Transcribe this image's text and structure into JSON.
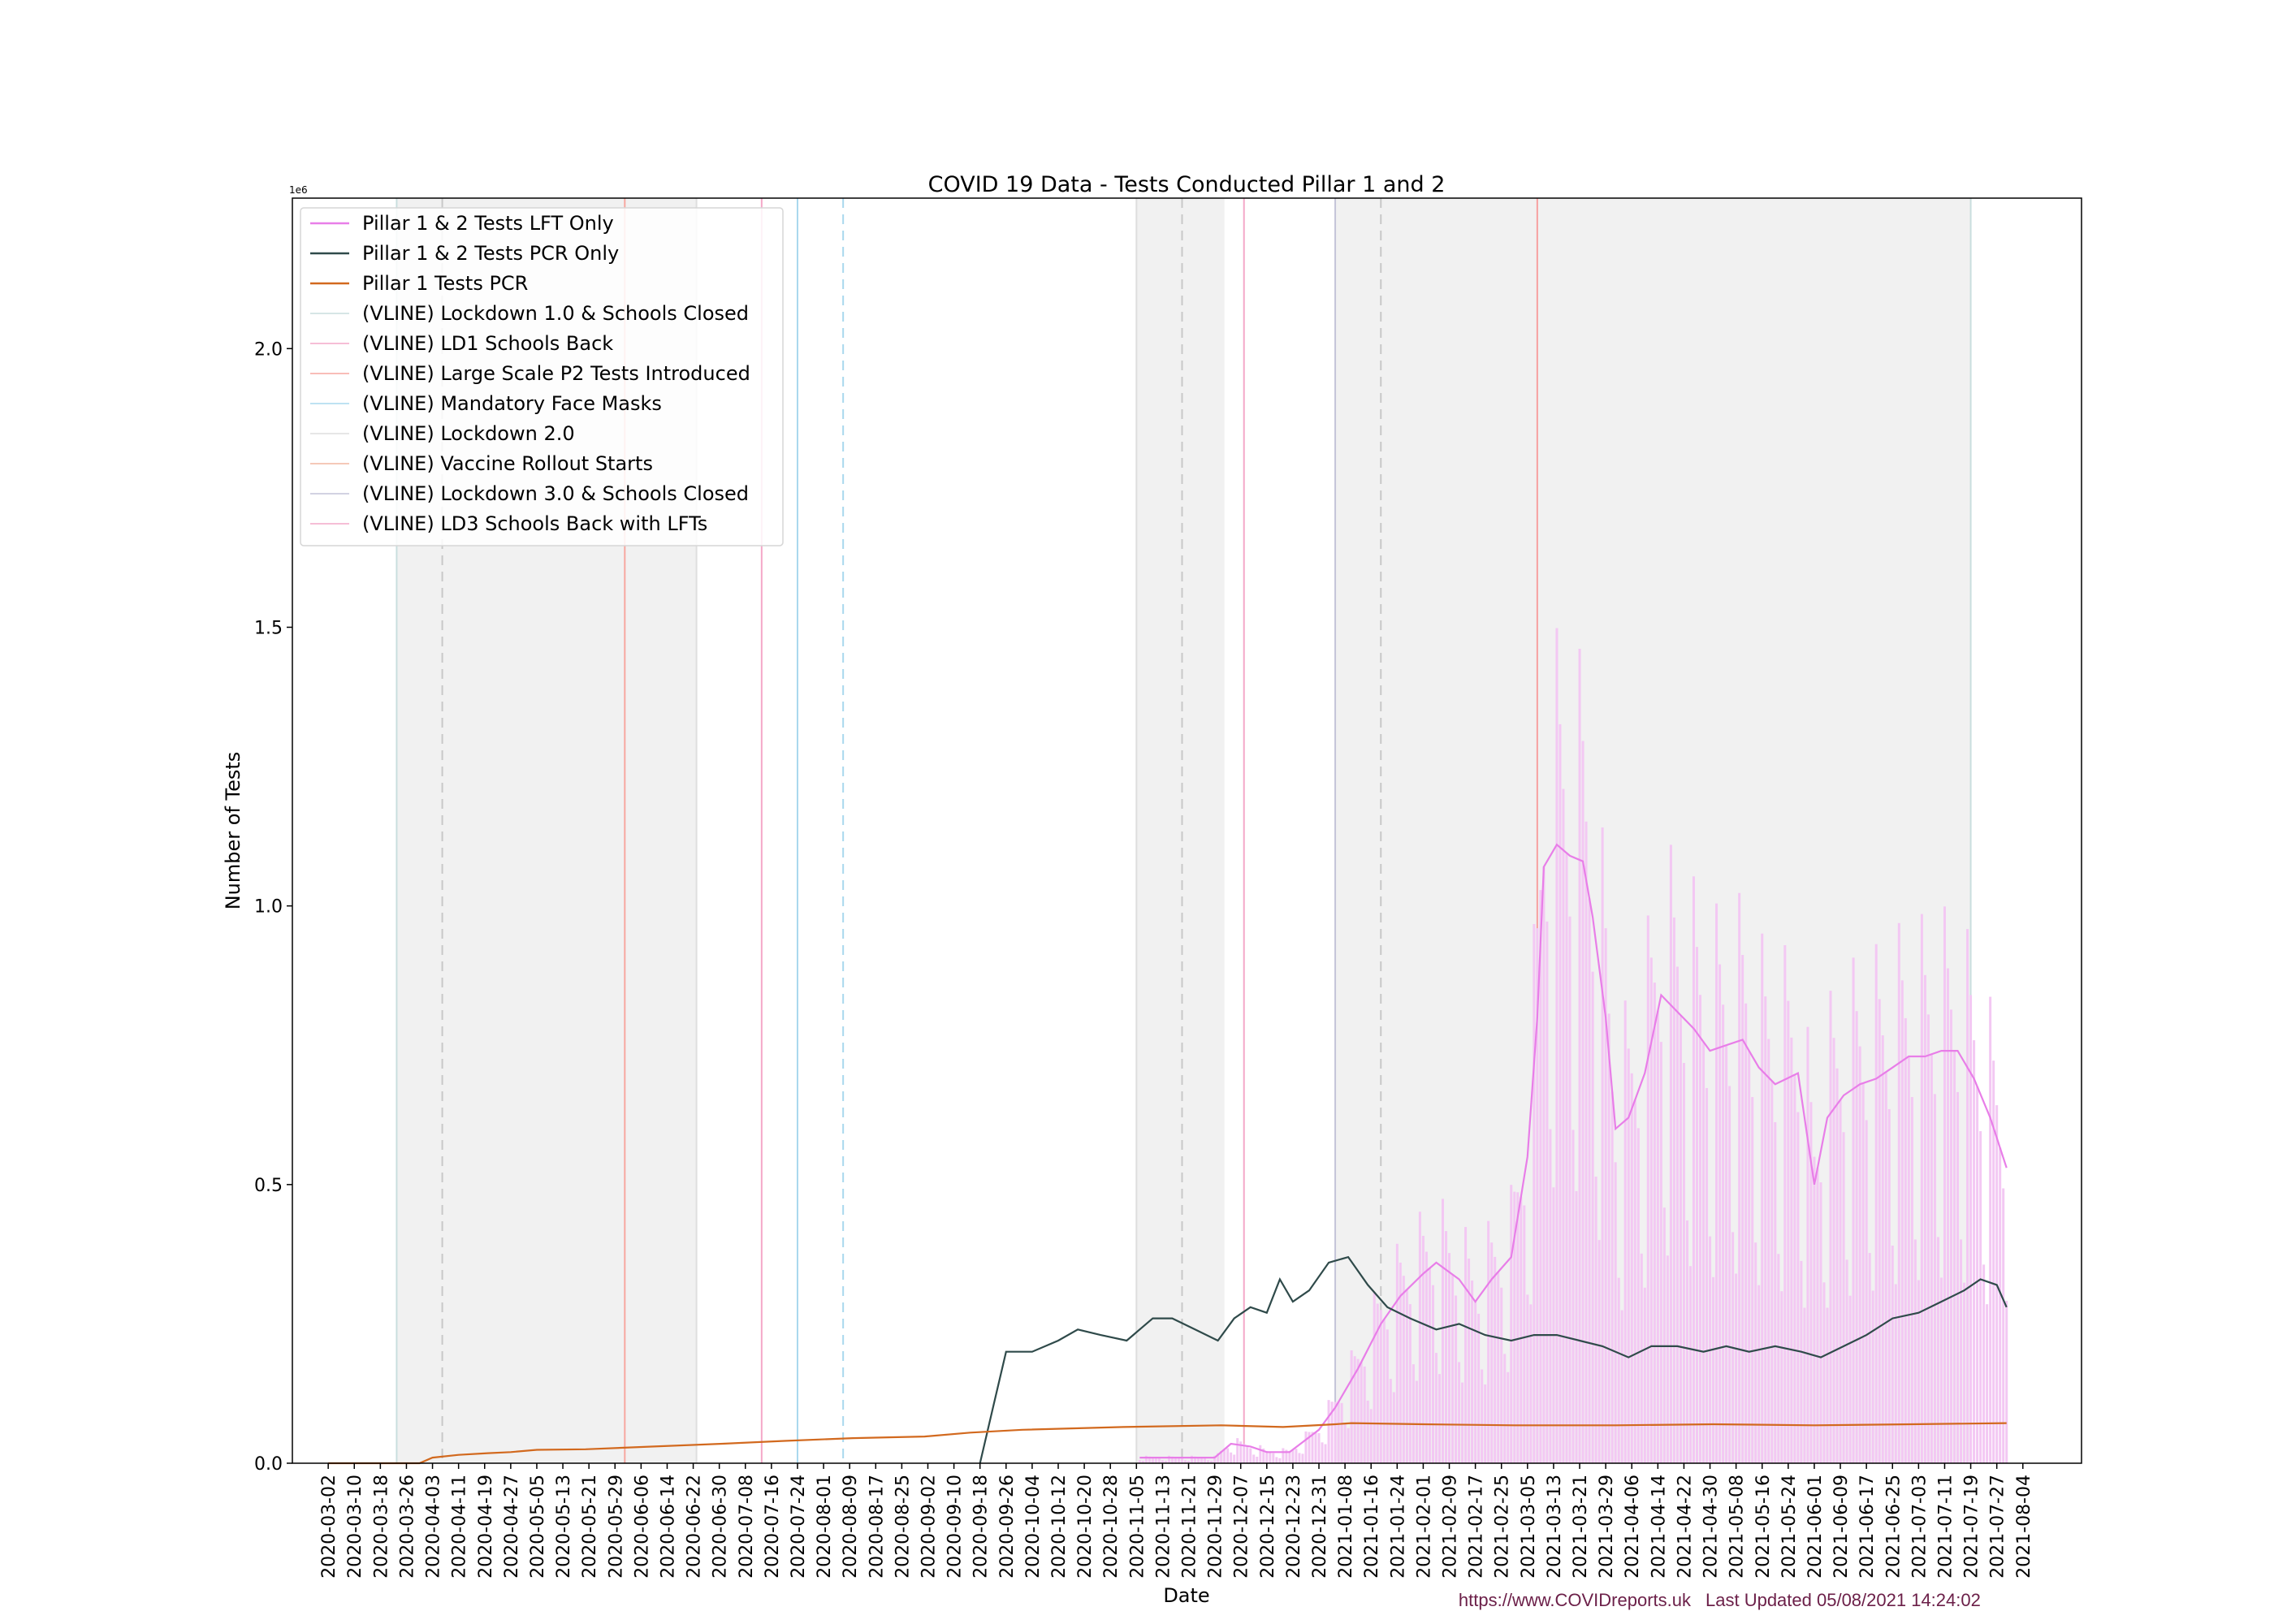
{
  "footer": {
    "source": "https://www.COVIDreports.uk",
    "updated": "Last Updated 05/08/2021 14:24:02"
  },
  "chart_data": {
    "type": "line",
    "title": "COVID 19 Data - Tests Conducted Pillar 1 and 2",
    "xlabel": "Date",
    "ylabel": "Number of Tests",
    "y_multiplier_label": "1e6",
    "xlim": [
      "2020-02-20",
      "2021-08-22"
    ],
    "ylim": [
      0,
      2.27
    ],
    "y_unit": "millions",
    "yticks": [
      0.0,
      0.5,
      1.0,
      1.5,
      2.0
    ],
    "ytick_labels": [
      "0.0",
      "0.5",
      "1.0",
      "1.5",
      "2.0"
    ],
    "xtick_labels": [
      "2020-03-02",
      "2020-03-10",
      "2020-03-18",
      "2020-03-26",
      "2020-04-03",
      "2020-04-11",
      "2020-04-19",
      "2020-04-27",
      "2020-05-05",
      "2020-05-13",
      "2020-05-21",
      "2020-05-29",
      "2020-06-06",
      "2020-06-14",
      "2020-06-22",
      "2020-06-30",
      "2020-07-08",
      "2020-07-16",
      "2020-07-24",
      "2020-08-01",
      "2020-08-09",
      "2020-08-17",
      "2020-08-25",
      "2020-09-02",
      "2020-09-10",
      "2020-09-18",
      "2020-09-26",
      "2020-10-04",
      "2020-10-12",
      "2020-10-20",
      "2020-10-28",
      "2020-11-05",
      "2020-11-13",
      "2020-11-21",
      "2020-11-29",
      "2020-12-07",
      "2020-12-15",
      "2020-12-23",
      "2020-12-31",
      "2021-01-08",
      "2021-01-16",
      "2021-01-24",
      "2021-02-01",
      "2021-02-09",
      "2021-02-17",
      "2021-02-25",
      "2021-03-05",
      "2021-03-13",
      "2021-03-21",
      "2021-03-29",
      "2021-04-06",
      "2021-04-14",
      "2021-04-22",
      "2021-04-30",
      "2021-05-08",
      "2021-05-16",
      "2021-05-24",
      "2021-06-01",
      "2021-06-09",
      "2021-06-17",
      "2021-06-25",
      "2021-07-03",
      "2021-07-11",
      "2021-07-19",
      "2021-07-27",
      "2021-08-04"
    ],
    "grid": false,
    "legend_position": "top-left",
    "colors": {
      "lft": "#e87ee8",
      "lft_bar": "#f3c8f3",
      "pcr": "#2f4a4a",
      "pillar1": "#d2691e",
      "shade": "#f1f1f1"
    },
    "series": [
      {
        "name": "Pillar 1 & 2 Tests LFT Only",
        "color": "#e87ee8",
        "x": [
          "2020-11-06",
          "2020-11-15",
          "2020-11-25",
          "2020-11-29",
          "2020-12-04",
          "2020-12-10",
          "2020-12-15",
          "2020-12-22",
          "2020-12-31",
          "2021-01-05",
          "2021-01-12",
          "2021-01-19",
          "2021-01-25",
          "2021-02-01",
          "2021-02-05",
          "2021-02-12",
          "2021-02-17",
          "2021-02-22",
          "2021-02-28",
          "2021-03-05",
          "2021-03-08",
          "2021-03-10",
          "2021-03-14",
          "2021-03-18",
          "2021-03-22",
          "2021-03-25",
          "2021-03-29",
          "2021-04-01",
          "2021-04-05",
          "2021-04-10",
          "2021-04-15",
          "2021-04-20",
          "2021-04-25",
          "2021-04-30",
          "2021-05-05",
          "2021-05-10",
          "2021-05-15",
          "2021-05-20",
          "2021-05-27",
          "2021-06-01",
          "2021-06-05",
          "2021-06-10",
          "2021-06-15",
          "2021-06-20",
          "2021-06-25",
          "2021-06-30",
          "2021-07-05",
          "2021-07-10",
          "2021-07-15",
          "2021-07-20",
          "2021-07-25",
          "2021-07-30"
        ],
        "y": [
          0.01,
          0.01,
          0.01,
          0.01,
          0.035,
          0.03,
          0.02,
          0.02,
          0.06,
          0.1,
          0.17,
          0.25,
          0.3,
          0.34,
          0.36,
          0.33,
          0.29,
          0.33,
          0.37,
          0.55,
          0.8,
          1.07,
          1.11,
          1.09,
          1.08,
          0.98,
          0.8,
          0.6,
          0.62,
          0.7,
          0.84,
          0.81,
          0.78,
          0.74,
          0.75,
          0.76,
          0.71,
          0.68,
          0.7,
          0.5,
          0.62,
          0.66,
          0.68,
          0.69,
          0.71,
          0.73,
          0.73,
          0.74,
          0.74,
          0.69,
          0.62,
          0.53
        ]
      },
      {
        "name": "Pillar 1 & 2 Tests PCR Only",
        "color": "#2f4a4a",
        "x": [
          "2020-09-18",
          "2020-09-22",
          "2020-09-26",
          "2020-10-04",
          "2020-10-12",
          "2020-10-18",
          "2020-10-25",
          "2020-11-02",
          "2020-11-10",
          "2020-11-16",
          "2020-11-23",
          "2020-11-30",
          "2020-12-05",
          "2020-12-10",
          "2020-12-15",
          "2020-12-19",
          "2020-12-23",
          "2020-12-28",
          "2021-01-03",
          "2021-01-09",
          "2021-01-15",
          "2021-01-21",
          "2021-01-28",
          "2021-02-05",
          "2021-02-12",
          "2021-02-20",
          "2021-02-28",
          "2021-03-07",
          "2021-03-14",
          "2021-03-21",
          "2021-03-28",
          "2021-04-05",
          "2021-04-12",
          "2021-04-20",
          "2021-04-28",
          "2021-05-05",
          "2021-05-12",
          "2021-05-20",
          "2021-05-28",
          "2021-06-03",
          "2021-06-10",
          "2021-06-17",
          "2021-06-25",
          "2021-07-03",
          "2021-07-10",
          "2021-07-17",
          "2021-07-22",
          "2021-07-27",
          "2021-07-30"
        ],
        "y": [
          0.0,
          0.1,
          0.2,
          0.2,
          0.22,
          0.24,
          0.23,
          0.22,
          0.26,
          0.26,
          0.24,
          0.22,
          0.26,
          0.28,
          0.27,
          0.33,
          0.29,
          0.31,
          0.36,
          0.37,
          0.32,
          0.28,
          0.26,
          0.24,
          0.25,
          0.23,
          0.22,
          0.23,
          0.23,
          0.22,
          0.21,
          0.19,
          0.21,
          0.21,
          0.2,
          0.21,
          0.2,
          0.21,
          0.2,
          0.19,
          0.21,
          0.23,
          0.26,
          0.27,
          0.29,
          0.31,
          0.33,
          0.32,
          0.28
        ]
      },
      {
        "name": "Pillar 1 Tests PCR",
        "color": "#d2691e",
        "x": [
          "2020-03-02",
          "2020-03-30",
          "2020-04-03",
          "2020-04-11",
          "2020-04-20",
          "2020-04-27",
          "2020-05-05",
          "2020-05-20",
          "2020-06-10",
          "2020-07-01",
          "2020-07-20",
          "2020-08-10",
          "2020-09-01",
          "2020-09-15",
          "2020-10-01",
          "2020-11-01",
          "2020-12-01",
          "2020-12-20",
          "2021-01-05",
          "2021-01-10",
          "2021-02-01",
          "2021-03-01",
          "2021-04-01",
          "2021-05-01",
          "2021-06-01",
          "2021-07-01",
          "2021-07-30"
        ],
        "y": [
          0.0,
          0.0,
          0.01,
          0.015,
          0.018,
          0.02,
          0.024,
          0.025,
          0.03,
          0.035,
          0.04,
          0.045,
          0.048,
          0.055,
          0.06,
          0.065,
          0.068,
          0.065,
          0.07,
          0.072,
          0.07,
          0.068,
          0.068,
          0.07,
          0.068,
          0.07,
          0.072
        ]
      }
    ],
    "vlines": [
      {
        "name": "(VLINE) Lockdown 1.0 & Schools Closed",
        "color": "#c9dede"
      },
      {
        "name": "(VLINE) LD1 Schools Back",
        "color": "#f4a8c8"
      },
      {
        "name": "(VLINE) Large Scale P2 Tests Introduced",
        "color": "#f7a7a0"
      },
      {
        "name": "(VLINE) Mandatory Face Masks",
        "color": "#a9d8ee"
      },
      {
        "name": "(VLINE) Lockdown 2.0",
        "color": "#dedede"
      },
      {
        "name": "(VLINE) Vaccine Rollout Starts",
        "color": "#f2b7a0"
      },
      {
        "name": "(VLINE) Lockdown 3.0 & Schools Closed",
        "color": "#c4c4d8"
      },
      {
        "name": "(VLINE) LD3 Schools Back with LFTs",
        "color": "#f4a8c8"
      }
    ],
    "shaded_periods": [
      {
        "start": "2020-03-23",
        "end": "2020-06-23"
      },
      {
        "start": "2020-11-05",
        "end": "2020-12-02"
      },
      {
        "start": "2021-01-05",
        "end": "2021-07-19"
      }
    ],
    "vline_dates": [
      {
        "date": "2020-03-23",
        "color": "#c9dede",
        "dash": false
      },
      {
        "date": "2020-04-06",
        "color": "#c8c8c8",
        "dash": true
      },
      {
        "date": "2020-06-01",
        "color": "#f7a7a0",
        "dash": false
      },
      {
        "date": "2020-06-23",
        "color": "#dedede",
        "dash": false
      },
      {
        "date": "2020-07-13",
        "color": "#f4a8c8",
        "dash": false
      },
      {
        "date": "2020-07-24",
        "color": "#a9d8ee",
        "dash": false
      },
      {
        "date": "2020-08-07",
        "color": "#a9d8ee",
        "dash": true
      },
      {
        "date": "2020-11-05",
        "color": "#dedede",
        "dash": false
      },
      {
        "date": "2020-11-19",
        "color": "#c8c8c8",
        "dash": true
      },
      {
        "date": "2020-12-08",
        "color": "#f4a8c8",
        "dash": false
      },
      {
        "date": "2021-01-05",
        "color": "#c4c4d8",
        "dash": false
      },
      {
        "date": "2021-01-19",
        "color": "#c8c8c8",
        "dash": true
      },
      {
        "date": "2021-03-08",
        "color": "#f7a0a0",
        "dash": false
      },
      {
        "date": "2021-07-19",
        "color": "#c9dede",
        "dash": false
      }
    ]
  }
}
